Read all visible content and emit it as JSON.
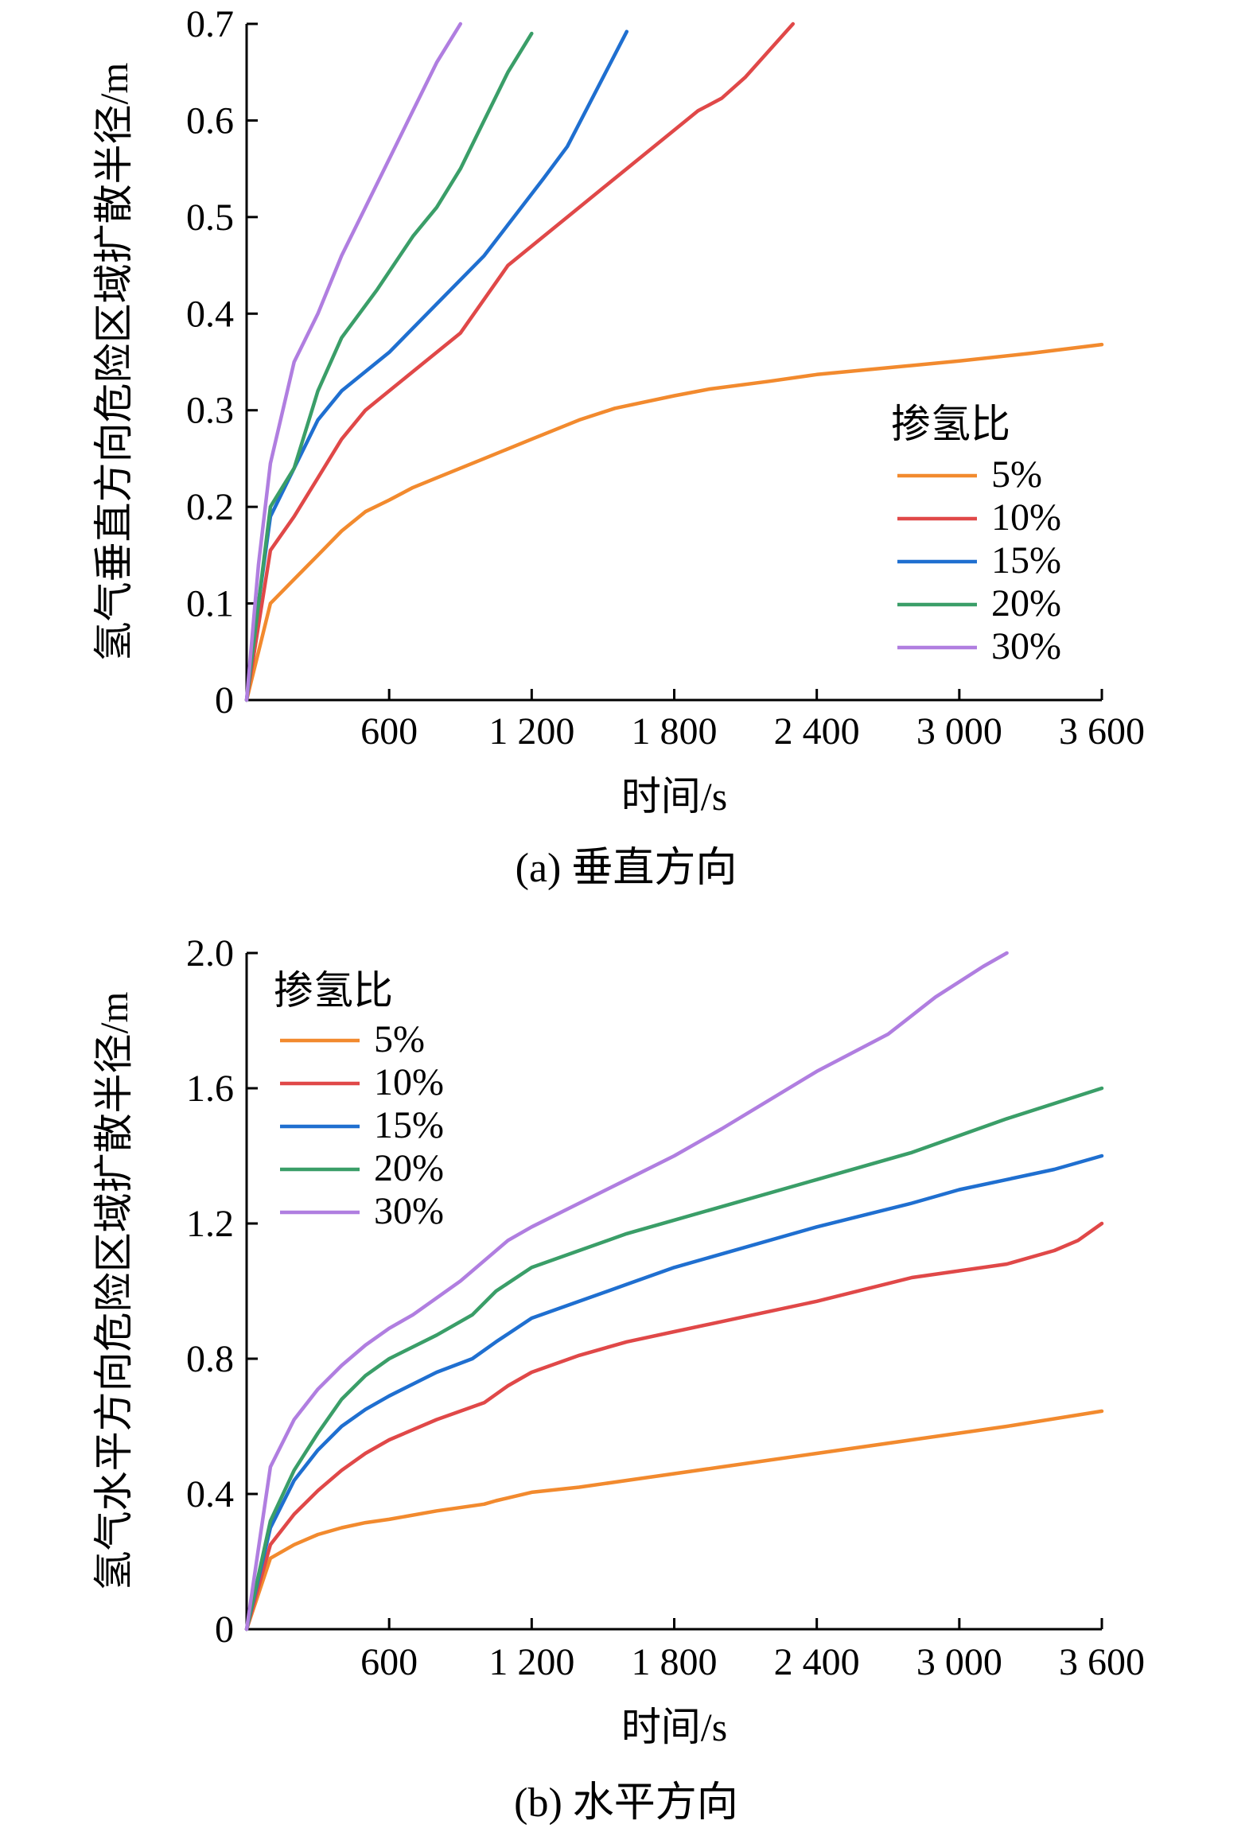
{
  "chart_data": [
    {
      "type": "line",
      "caption": "(a) 垂直方向",
      "xlabel": "时间/s",
      "ylabel": "氢气垂直方向危险区域扩散半径/m",
      "xlim": [
        0,
        3600
      ],
      "ylim": [
        0,
        0.7
      ],
      "xticks": [
        0,
        600,
        1200,
        1800,
        2400,
        3000,
        3600
      ],
      "xtick_labels": [
        "",
        "600",
        "1 200",
        "1 800",
        "2 400",
        "3 000",
        "3 600"
      ],
      "yticks": [
        0,
        0.1,
        0.2,
        0.3,
        0.4,
        0.5,
        0.6,
        0.7
      ],
      "ytick_labels": [
        "0",
        "0.1",
        "0.2",
        "0.3",
        "0.4",
        "0.5",
        "0.6",
        "0.7"
      ],
      "legend_title": "掺氢比",
      "legend_position": "right",
      "grid": false,
      "series": [
        {
          "name": "5%",
          "color": "#f28a2e",
          "x": [
            0,
            100,
            200,
            300,
            400,
            500,
            600,
            700,
            800,
            1000,
            1200,
            1400,
            1550,
            1800,
            1950,
            2200,
            2400,
            2700,
            3000,
            3300,
            3600
          ],
          "y": [
            0,
            0.1,
            0.125,
            0.15,
            0.175,
            0.195,
            0.207,
            0.22,
            0.23,
            0.25,
            0.27,
            0.29,
            0.302,
            0.315,
            0.322,
            0.33,
            0.337,
            0.344,
            0.351,
            0.359,
            0.368
          ]
        },
        {
          "name": "10%",
          "color": "#e04848",
          "x": [
            0,
            100,
            200,
            300,
            400,
            500,
            700,
            900,
            1100,
            1300,
            1500,
            1700,
            1900,
            2000,
            2100,
            2300
          ],
          "y": [
            0,
            0.155,
            0.19,
            0.23,
            0.27,
            0.3,
            0.34,
            0.38,
            0.45,
            0.49,
            0.53,
            0.57,
            0.61,
            0.623,
            0.645,
            0.7
          ]
        },
        {
          "name": "15%",
          "color": "#1f6fd0",
          "x": [
            0,
            50,
            100,
            200,
            300,
            400,
            600,
            800,
            1000,
            1250,
            1350,
            1600
          ],
          "y": [
            0,
            0.1,
            0.19,
            0.24,
            0.29,
            0.32,
            0.36,
            0.41,
            0.46,
            0.54,
            0.573,
            0.692
          ]
        },
        {
          "name": "20%",
          "color": "#3a9e68",
          "x": [
            0,
            50,
            100,
            200,
            300,
            400,
            550,
            700,
            800,
            900,
            1000,
            1100,
            1200
          ],
          "y": [
            0,
            0.1,
            0.2,
            0.24,
            0.32,
            0.375,
            0.425,
            0.48,
            0.51,
            0.55,
            0.6,
            0.65,
            0.69
          ]
        },
        {
          "name": "30%",
          "color": "#b07ee0",
          "x": [
            0,
            50,
            100,
            200,
            300,
            400,
            500,
            600,
            700,
            800,
            900
          ],
          "y": [
            0,
            0.14,
            0.245,
            0.35,
            0.4,
            0.46,
            0.51,
            0.56,
            0.61,
            0.66,
            0.7
          ]
        }
      ]
    },
    {
      "type": "line",
      "caption": "(b) 水平方向",
      "xlabel": "时间/s",
      "ylabel": "氢气水平方向危险区域扩散半径/m",
      "xlim": [
        0,
        3600
      ],
      "ylim": [
        0,
        2.0
      ],
      "xticks": [
        0,
        600,
        1200,
        1800,
        2400,
        3000,
        3600
      ],
      "xtick_labels": [
        "",
        "600",
        "1 200",
        "1 800",
        "2 400",
        "3 000",
        "3 600"
      ],
      "yticks": [
        0,
        0.4,
        0.8,
        1.2,
        1.6,
        2.0
      ],
      "ytick_labels": [
        "0",
        "0.4",
        "0.8",
        "1.2",
        "1.6",
        "2.0"
      ],
      "legend_title": "掺氢比",
      "legend_position": "top-left",
      "grid": false,
      "series": [
        {
          "name": "5%",
          "color": "#f28a2e",
          "x": [
            0,
            100,
            200,
            300,
            400,
            500,
            600,
            800,
            1000,
            1050,
            1200,
            1400,
            1600,
            1800,
            2000,
            2400,
            2800,
            3200,
            3600
          ],
          "y": [
            0,
            0.21,
            0.25,
            0.28,
            0.3,
            0.315,
            0.325,
            0.35,
            0.37,
            0.38,
            0.405,
            0.42,
            0.44,
            0.46,
            0.48,
            0.52,
            0.56,
            0.6,
            0.645
          ]
        },
        {
          "name": "10%",
          "color": "#e04848",
          "x": [
            0,
            100,
            200,
            300,
            400,
            500,
            600,
            800,
            1000,
            1100,
            1200,
            1400,
            1600,
            1800,
            2000,
            2400,
            2800,
            3000,
            3200,
            3400,
            3500,
            3600
          ],
          "y": [
            0,
            0.25,
            0.34,
            0.41,
            0.47,
            0.52,
            0.56,
            0.62,
            0.67,
            0.72,
            0.76,
            0.81,
            0.85,
            0.88,
            0.91,
            0.97,
            1.04,
            1.06,
            1.08,
            1.12,
            1.15,
            1.2
          ]
        },
        {
          "name": "15%",
          "color": "#1f6fd0",
          "x": [
            0,
            100,
            200,
            300,
            400,
            500,
            600,
            800,
            950,
            1050,
            1200,
            1400,
            1600,
            1800,
            2000,
            2400,
            2800,
            3000,
            3200,
            3400,
            3600
          ],
          "y": [
            0,
            0.3,
            0.44,
            0.53,
            0.6,
            0.65,
            0.69,
            0.76,
            0.8,
            0.85,
            0.92,
            0.97,
            1.02,
            1.07,
            1.11,
            1.19,
            1.26,
            1.3,
            1.33,
            1.36,
            1.4
          ]
        },
        {
          "name": "20%",
          "color": "#3a9e68",
          "x": [
            0,
            100,
            200,
            300,
            400,
            500,
            600,
            800,
            950,
            1050,
            1200,
            1400,
            1600,
            1800,
            2000,
            2400,
            2800,
            3200,
            3600
          ],
          "y": [
            0,
            0.32,
            0.47,
            0.58,
            0.68,
            0.75,
            0.8,
            0.87,
            0.93,
            1.0,
            1.07,
            1.12,
            1.17,
            1.21,
            1.25,
            1.33,
            1.41,
            1.51,
            1.6
          ]
        },
        {
          "name": "30%",
          "color": "#b07ee0",
          "x": [
            0,
            100,
            200,
            300,
            400,
            500,
            600,
            700,
            900,
            1100,
            1200,
            1400,
            1600,
            1800,
            2000,
            2400,
            2700,
            2900,
            3100,
            3200
          ],
          "y": [
            0,
            0.48,
            0.62,
            0.71,
            0.78,
            0.84,
            0.89,
            0.93,
            1.03,
            1.15,
            1.19,
            1.26,
            1.33,
            1.4,
            1.48,
            1.65,
            1.76,
            1.87,
            1.96,
            2.0
          ]
        }
      ]
    }
  ]
}
